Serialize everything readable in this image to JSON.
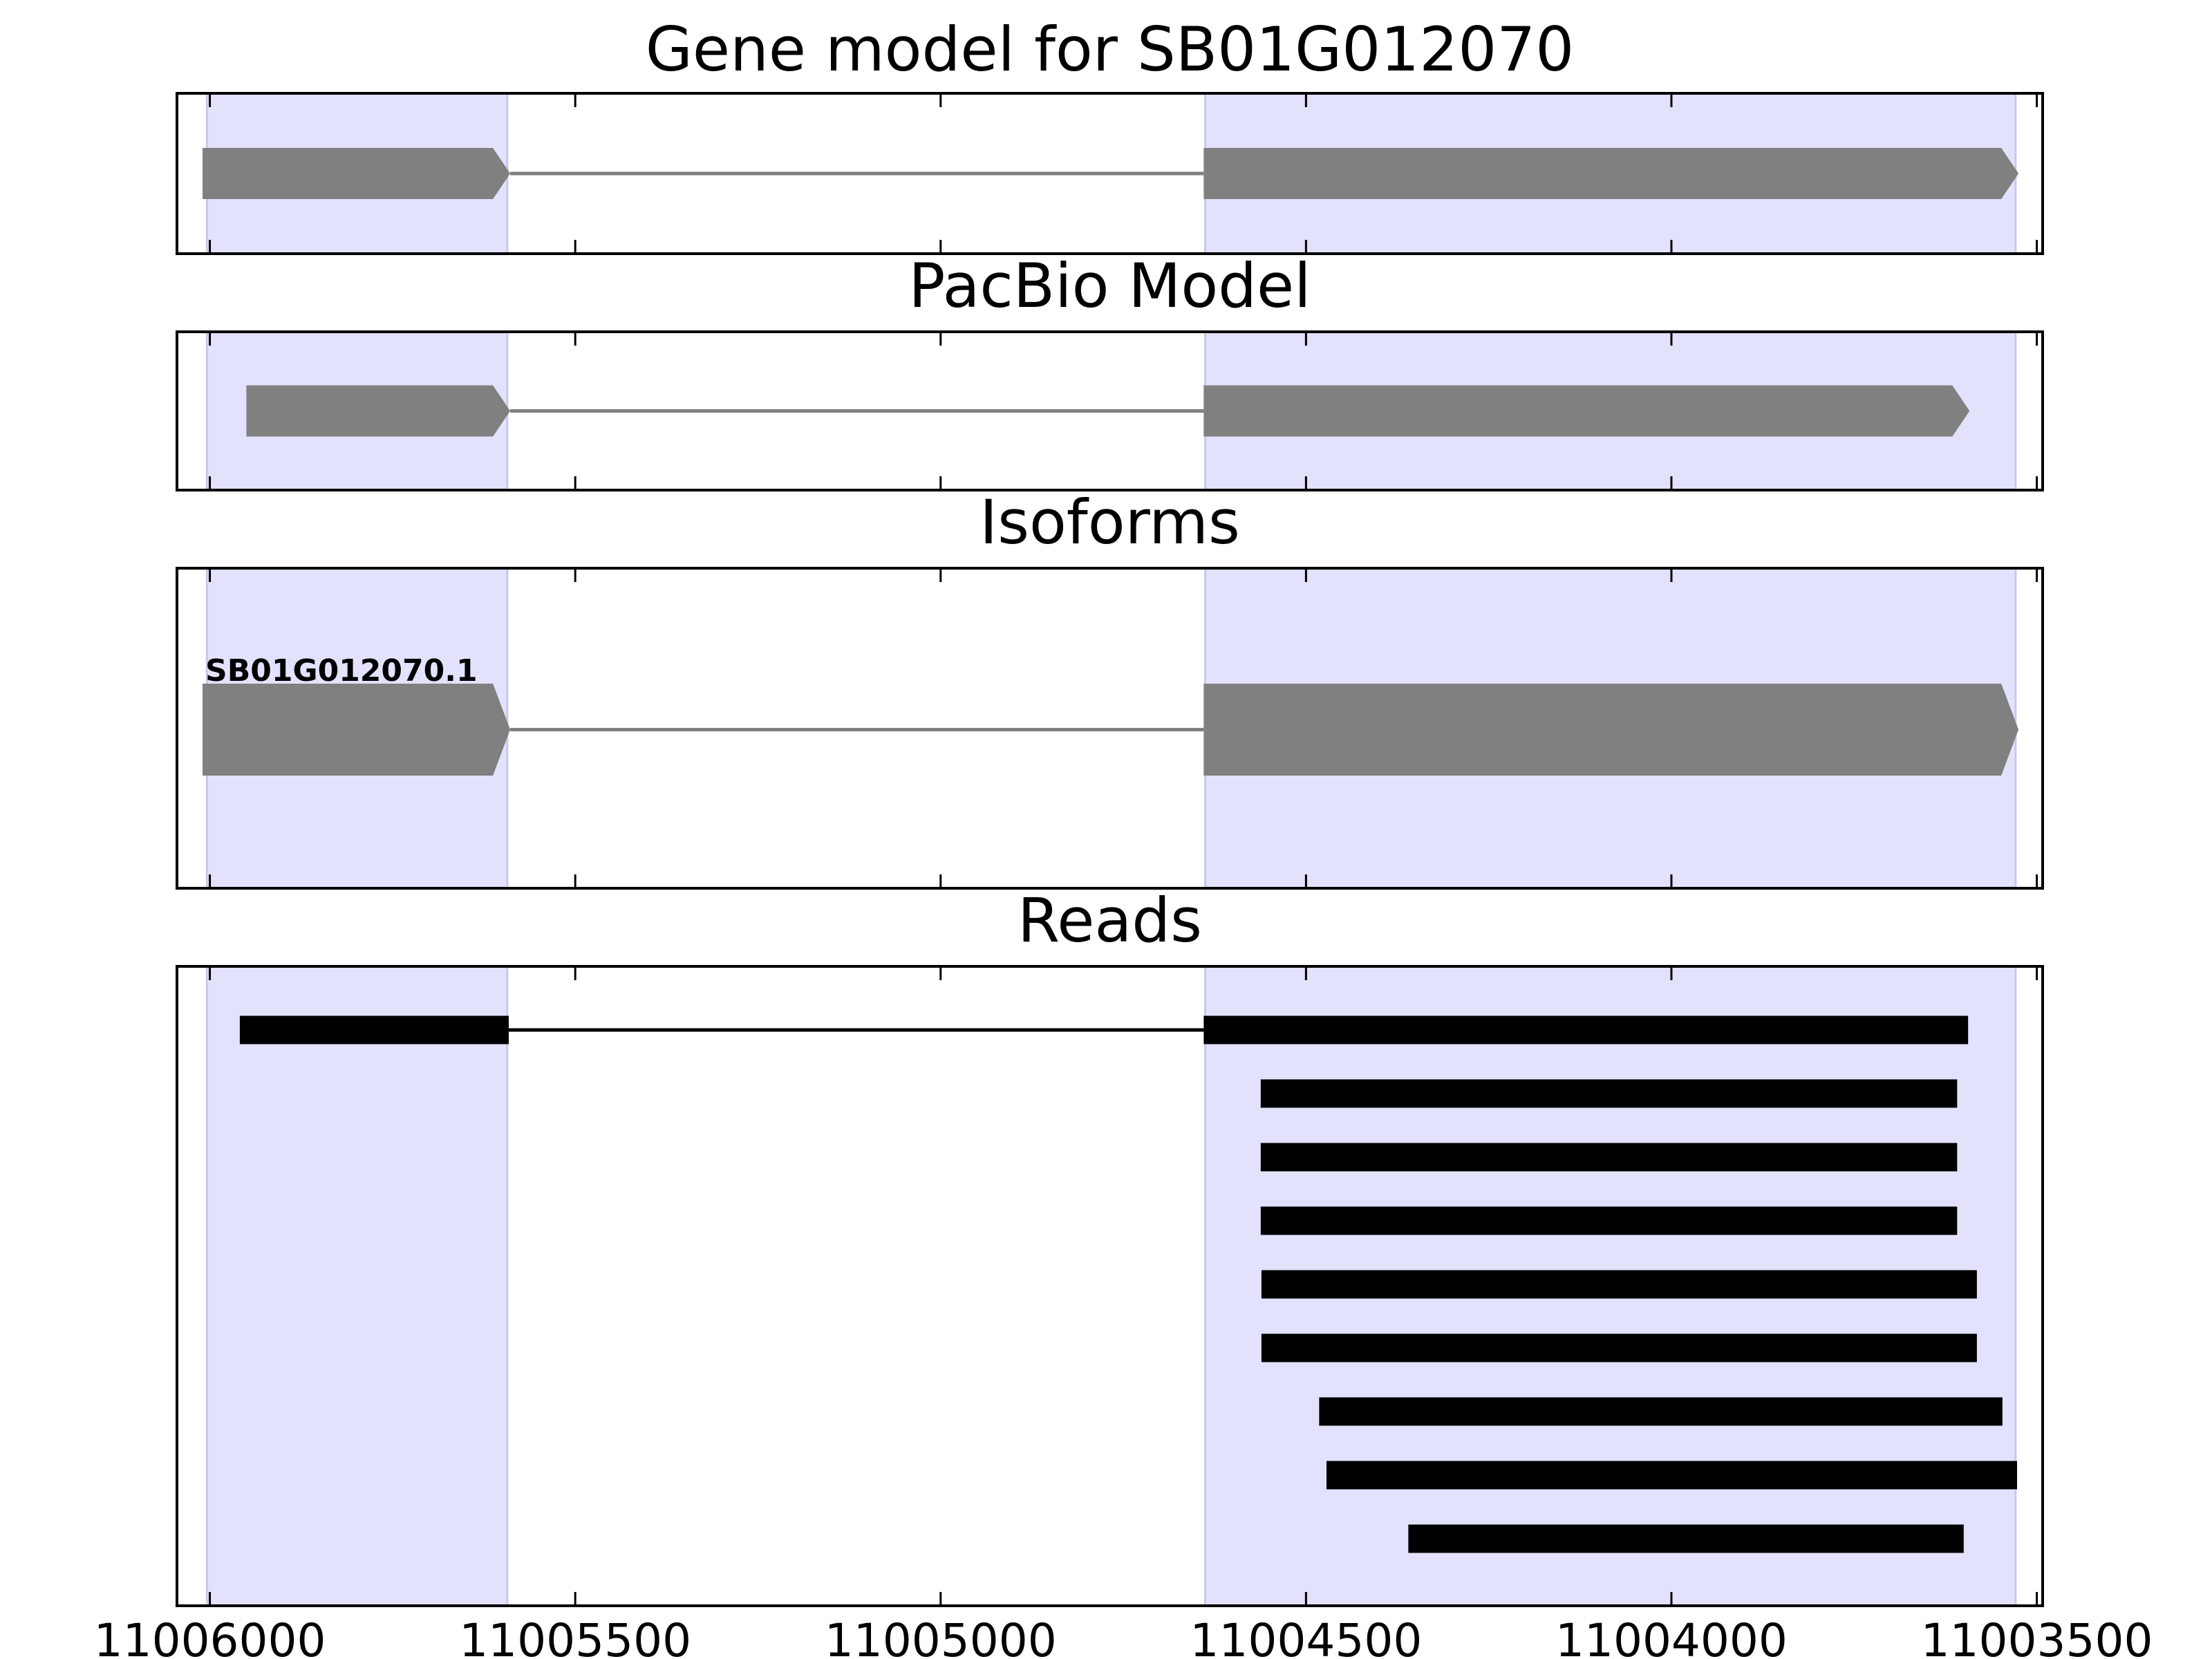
{
  "chart_data": [
    {
      "type": "gene-track",
      "title": "Gene model for SB01G012070",
      "xlim": [
        11006045,
        11003492
      ],
      "xticks": [
        11006000,
        11005500,
        11005000,
        11004500,
        11004000,
        11003500
      ],
      "show_xtick_labels": false,
      "highlights": [
        [
          11006004,
          11005593
        ],
        [
          11004638,
          11003529
        ]
      ],
      "highlight_color": "#e2e2fc",
      "mark_style": "arrow",
      "color": "#808080",
      "transcripts": [
        {
          "exons": [
            [
              11006010,
              11005589
            ],
            [
              11004640,
              11003525
            ]
          ]
        }
      ]
    },
    {
      "type": "gene-track",
      "title": "PacBio Model",
      "xlim": [
        11006045,
        11003492
      ],
      "xticks": [
        11006000,
        11005500,
        11005000,
        11004500,
        11004000,
        11003500
      ],
      "show_xtick_labels": false,
      "highlights": [
        [
          11006004,
          11005593
        ],
        [
          11004638,
          11003529
        ]
      ],
      "highlight_color": "#e2e2fc",
      "mark_style": "arrow",
      "color": "#808080",
      "transcripts": [
        {
          "exons": [
            [
              11005950,
              11005589
            ],
            [
              11004640,
              11003592
            ]
          ]
        }
      ]
    },
    {
      "type": "gene-track",
      "title": "Isoforms",
      "xlim": [
        11006045,
        11003492
      ],
      "xticks": [
        11006000,
        11005500,
        11005000,
        11004500,
        11004000,
        11003500
      ],
      "show_xtick_labels": false,
      "highlights": [
        [
          11006004,
          11005593
        ],
        [
          11004638,
          11003529
        ]
      ],
      "highlight_color": "#e2e2fc",
      "mark_style": "arrow",
      "color": "#808080",
      "transcripts": [
        {
          "label": "SB01G012070.1",
          "exons": [
            [
              11006010,
              11005589
            ],
            [
              11004640,
              11003525
            ]
          ]
        }
      ]
    },
    {
      "type": "gene-track",
      "title": "Reads",
      "xlim": [
        11006045,
        11003492
      ],
      "xticks": [
        11006000,
        11005500,
        11005000,
        11004500,
        11004000,
        11003500
      ],
      "show_xtick_labels": true,
      "highlights": [
        [
          11006004,
          11005593
        ],
        [
          11004638,
          11003529
        ]
      ],
      "highlight_color": "#e2e2fc",
      "mark_style": "bar",
      "color": "#000000",
      "transcripts": [
        {
          "exons": [
            [
              11005959,
              11005591
            ],
            [
              11004640,
              11003594
            ]
          ]
        },
        {
          "exons": [
            [
              11004562,
              11003609
            ]
          ]
        },
        {
          "exons": [
            [
              11004562,
              11003609
            ]
          ]
        },
        {
          "exons": [
            [
              11004562,
              11003609
            ]
          ]
        },
        {
          "exons": [
            [
              11004561,
              11003582
            ]
          ]
        },
        {
          "exons": [
            [
              11004561,
              11003582
            ]
          ]
        },
        {
          "exons": [
            [
              11004482,
              11003547
            ]
          ]
        },
        {
          "exons": [
            [
              11004472,
              11003527
            ]
          ]
        },
        {
          "exons": [
            [
              11004360,
              11003600
            ]
          ]
        }
      ]
    }
  ]
}
